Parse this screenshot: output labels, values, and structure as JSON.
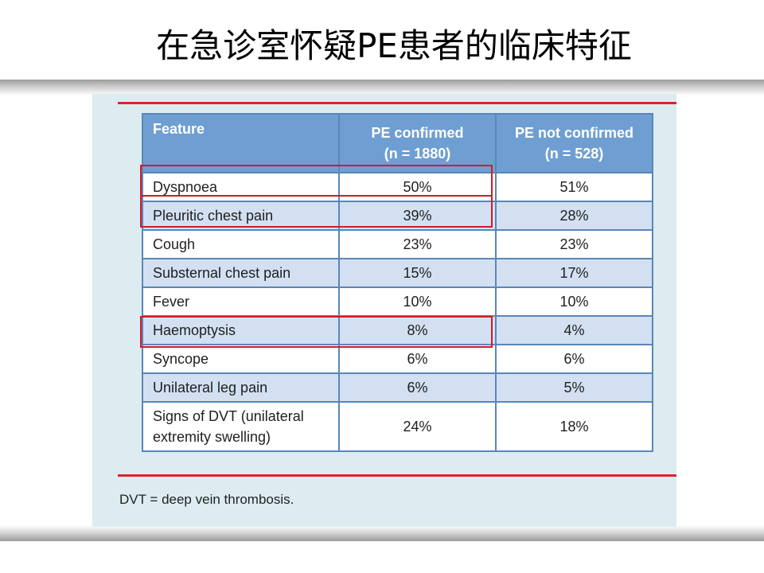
{
  "slide": {
    "title": "在急诊室怀疑PE患者的临床特征"
  },
  "table": {
    "headers": {
      "feature": "Feature",
      "pe_confirmed": "PE confirmed",
      "pe_confirmed_n": "(n = 1880)",
      "pe_not_confirmed": "PE not confirmed",
      "pe_not_confirmed_n": "(n = 528)"
    },
    "rows": [
      {
        "feature": "Dyspnoea",
        "pe_confirmed": "50%",
        "pe_not_confirmed": "51%"
      },
      {
        "feature": "Pleuritic chest pain",
        "pe_confirmed": "39%",
        "pe_not_confirmed": "28%"
      },
      {
        "feature": "Cough",
        "pe_confirmed": "23%",
        "pe_not_confirmed": "23%"
      },
      {
        "feature": "Substernal chest pain",
        "pe_confirmed": "15%",
        "pe_not_confirmed": "17%"
      },
      {
        "feature": "Fever",
        "pe_confirmed": "10%",
        "pe_not_confirmed": "10%"
      },
      {
        "feature": "Haemoptysis",
        "pe_confirmed": "8%",
        "pe_not_confirmed": "4%"
      },
      {
        "feature": "Syncope",
        "pe_confirmed": "6%",
        "pe_not_confirmed": "6%"
      },
      {
        "feature": "Unilateral leg pain",
        "pe_confirmed": "6%",
        "pe_not_confirmed": "5%"
      },
      {
        "feature": "Signs of DVT (unilateral extremity swelling)",
        "pe_confirmed": "24%",
        "pe_not_confirmed": "18%"
      }
    ],
    "highlighted_rows": [
      "Dyspnoea",
      "Pleuritic chest pain",
      "Haemoptysis"
    ],
    "footnote": "DVT = deep vein thrombosis."
  },
  "colors": {
    "header_bg": "#6f9fd2",
    "alt_row_bg": "#d2e0f2",
    "panel_bg": "#dcecf0",
    "rule_red": "#e0202c",
    "highlight_red": "#d01c28"
  }
}
